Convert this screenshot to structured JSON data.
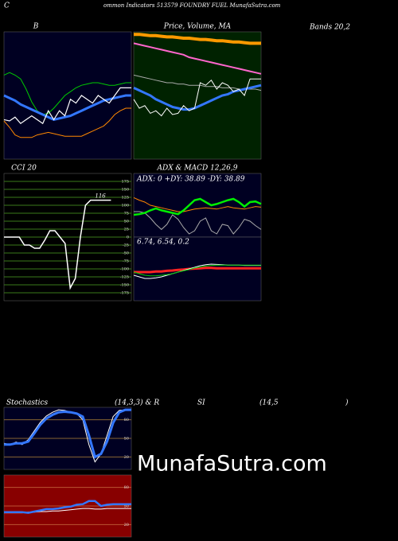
{
  "header": {
    "initial": "C",
    "text": "ommon  Indicators 513579 FOUNDRY FUEL MunafaSutra.com",
    "right": "Bands 20,2"
  },
  "row_labels": [
    "(14,3,3) & R",
    "SI",
    "(14,5",
    ")"
  ],
  "watermark": "MunafaSutra.com",
  "chart_data": [
    {
      "type": "line",
      "title": "B",
      "background": "#000022",
      "ylim": [
        0,
        100
      ],
      "series": [
        {
          "color": "#00cc00",
          "width": 1,
          "values": [
            66,
            68,
            66,
            63,
            55,
            45,
            38,
            35,
            36,
            40,
            45,
            50,
            53,
            56,
            58,
            59,
            60,
            60,
            59,
            58,
            58,
            59,
            60,
            60
          ]
        },
        {
          "color": "#ff8800",
          "width": 1,
          "values": [
            30,
            25,
            19,
            17,
            17,
            17,
            19,
            20,
            21,
            20,
            19,
            18,
            18,
            18,
            18,
            20,
            22,
            24,
            26,
            30,
            35,
            38,
            40,
            40
          ]
        },
        {
          "color": "#3377ff",
          "width": 3,
          "values": [
            50,
            48,
            46,
            43,
            41,
            39,
            37,
            35,
            33,
            31,
            32,
            33,
            34,
            36,
            38,
            40,
            42,
            44,
            46,
            47,
            48,
            49,
            50,
            50
          ]
        },
        {
          "color": "#ffffff",
          "width": 1.2,
          "values": [
            31,
            30,
            33,
            28,
            31,
            34,
            31,
            28,
            38,
            31,
            38,
            34,
            47,
            44,
            50,
            47,
            44,
            50,
            47,
            44,
            50,
            56,
            56,
            56
          ]
        }
      ]
    },
    {
      "type": "line",
      "title": "Price, Volume, MA",
      "background": "#002200",
      "ylim": [
        0,
        100
      ],
      "series": [
        {
          "color": "#ff9900",
          "width": 4,
          "values": [
            98,
            98,
            97.5,
            97,
            97,
            96.5,
            96,
            96,
            95.5,
            95,
            95,
            94.5,
            94,
            94,
            93.5,
            93,
            93,
            92.5,
            92,
            92,
            91.5,
            91,
            91,
            91
          ]
        },
        {
          "color": "#ff66cc",
          "width": 2,
          "values": [
            91,
            90,
            89,
            88,
            87,
            86,
            85,
            84,
            83,
            82,
            80,
            79,
            78,
            77,
            76,
            75,
            74,
            73,
            72,
            71,
            70,
            69,
            68,
            67
          ]
        },
        {
          "color": "#aaaaaa",
          "width": 1,
          "values": [
            66,
            65,
            64,
            63,
            62,
            61,
            60,
            60,
            59,
            59,
            58,
            58,
            58,
            57,
            57,
            57,
            56,
            56,
            56,
            55,
            55,
            55,
            55,
            54
          ]
        },
        {
          "color": "#3377ff",
          "width": 3,
          "values": [
            56,
            54,
            52,
            50,
            47,
            45,
            43,
            41,
            40,
            39,
            39,
            40,
            42,
            44,
            46,
            48,
            50,
            51,
            53,
            54,
            55,
            56,
            57,
            58
          ]
        },
        {
          "color": "#ffffff",
          "width": 1,
          "values": [
            47,
            40,
            42,
            36,
            38,
            34,
            40,
            35,
            36,
            42,
            38,
            40,
            60,
            58,
            62,
            55,
            60,
            58,
            53,
            55,
            50,
            63,
            63,
            63
          ]
        }
      ]
    },
    {
      "type": "line",
      "title": "CCI 20",
      "background": "#000000",
      "grid_color": "#3a7a1a",
      "ylim": [
        -200,
        200
      ],
      "yticks": [
        175,
        150,
        125,
        100,
        75,
        50,
        25,
        0,
        -25,
        -50,
        -75,
        -100,
        -125,
        -150,
        -175
      ],
      "label_last": true,
      "series": [
        {
          "color": "#ffffff",
          "width": 1.5,
          "values": [
            0,
            0,
            0,
            0,
            -25,
            -25,
            -35,
            -35,
            -10,
            20,
            20,
            0,
            -20,
            -160,
            -130,
            0,
            100,
            116,
            116,
            116,
            116,
            116,
            null,
            null,
            null,
            null
          ]
        }
      ]
    },
    {
      "type": "line",
      "title": "ADX  & MACD 12,26,9",
      "subtitle": "ADX: 0  +DY: 38.89 -DY: 38.89",
      "background": "#000022",
      "ylim": [
        0,
        100
      ],
      "series": [
        {
          "color": "#ff8800",
          "width": 1,
          "values": [
            62,
            58,
            55,
            50,
            48,
            46,
            44,
            42,
            40,
            40,
            42,
            44,
            45,
            46,
            45,
            44,
            46,
            48,
            46,
            45,
            44,
            46,
            48,
            47
          ]
        },
        {
          "color": "#aaaaaa",
          "width": 1,
          "values": [
            40,
            40,
            38,
            30,
            20,
            12,
            20,
            35,
            28,
            15,
            5,
            10,
            25,
            30,
            10,
            5,
            20,
            18,
            5,
            15,
            28,
            25,
            18,
            12
          ]
        },
        {
          "color": "#00ee00",
          "width": 2.5,
          "values": [
            35,
            36,
            38,
            42,
            45,
            42,
            40,
            38,
            36,
            42,
            50,
            58,
            60,
            55,
            50,
            52,
            55,
            58,
            60,
            55,
            48,
            55,
            56,
            52
          ]
        }
      ]
    },
    {
      "type": "line",
      "title": "6.74,  6.54,  0.2",
      "background": "#000022",
      "ylim": [
        -10,
        10
      ],
      "series": [
        {
          "color": "#ff2222",
          "width": 3,
          "values": [
            -1,
            -1,
            -1,
            -1,
            -0.8,
            -0.8,
            -0.6,
            -0.5,
            -0.3,
            -0.2,
            0,
            0.1,
            0.2,
            0.3,
            0.3,
            0.2,
            0.2,
            0.2,
            0.2,
            0.2,
            0.2,
            0.2,
            0.2,
            0.2
          ]
        },
        {
          "color": "#ffffff",
          "width": 1,
          "values": [
            -2,
            -2.5,
            -3,
            -3,
            -2.8,
            -2.5,
            -2,
            -1.5,
            -1,
            -0.5,
            0,
            0.5,
            1,
            1.3,
            1.5,
            1.4,
            1.3,
            1.2,
            1.2,
            1.2,
            1.1,
            1.1,
            1.1,
            1.1
          ]
        },
        {
          "color": "#00cc00",
          "width": 1,
          "values": [
            -1,
            -1.5,
            -2,
            -2.2,
            -2.2,
            -2,
            -1.8,
            -1.5,
            -1,
            -0.6,
            -0.2,
            0.3,
            0.6,
            0.9,
            1.1,
            1.2,
            1.2,
            1.2,
            1.2,
            1.2,
            1.2,
            1.2,
            1.2,
            1.2
          ]
        }
      ]
    },
    {
      "type": "line",
      "title": "Stochastics",
      "background": "#000022",
      "grid_color": "#886633",
      "ylim": [
        0,
        100
      ],
      "yticks": [
        80,
        50,
        20
      ],
      "series": [
        {
          "color": "#ffffff",
          "width": 1,
          "values": [
            42,
            40,
            44,
            40,
            48,
            62,
            76,
            86,
            92,
            96,
            95,
            92,
            90,
            80,
            40,
            12,
            25,
            55,
            85,
            95,
            96,
            96
          ]
        },
        {
          "color": "#3377ff",
          "width": 3,
          "values": [
            40,
            40,
            42,
            42,
            45,
            58,
            72,
            82,
            88,
            92,
            93,
            92,
            90,
            85,
            55,
            20,
            25,
            45,
            75,
            92,
            96,
            96
          ]
        }
      ]
    },
    {
      "type": "line",
      "background": "#880000",
      "grid_color": "#bb5533",
      "ylim": [
        0,
        100
      ],
      "yticks": [
        80,
        50,
        20
      ],
      "series": [
        {
          "color": "#ffffff",
          "width": 1,
          "values": [
            39,
            39,
            39,
            39,
            40,
            40,
            41,
            41,
            42,
            42,
            43,
            44,
            45,
            46,
            46,
            45,
            45,
            46,
            46,
            46,
            46,
            46
          ]
        },
        {
          "color": "#3377ff",
          "width": 2.5,
          "values": [
            40,
            40,
            40,
            40,
            39,
            41,
            43,
            45,
            45,
            46,
            48,
            49,
            52,
            53,
            58,
            58,
            50,
            52,
            53,
            53,
            53,
            53
          ]
        }
      ]
    }
  ]
}
